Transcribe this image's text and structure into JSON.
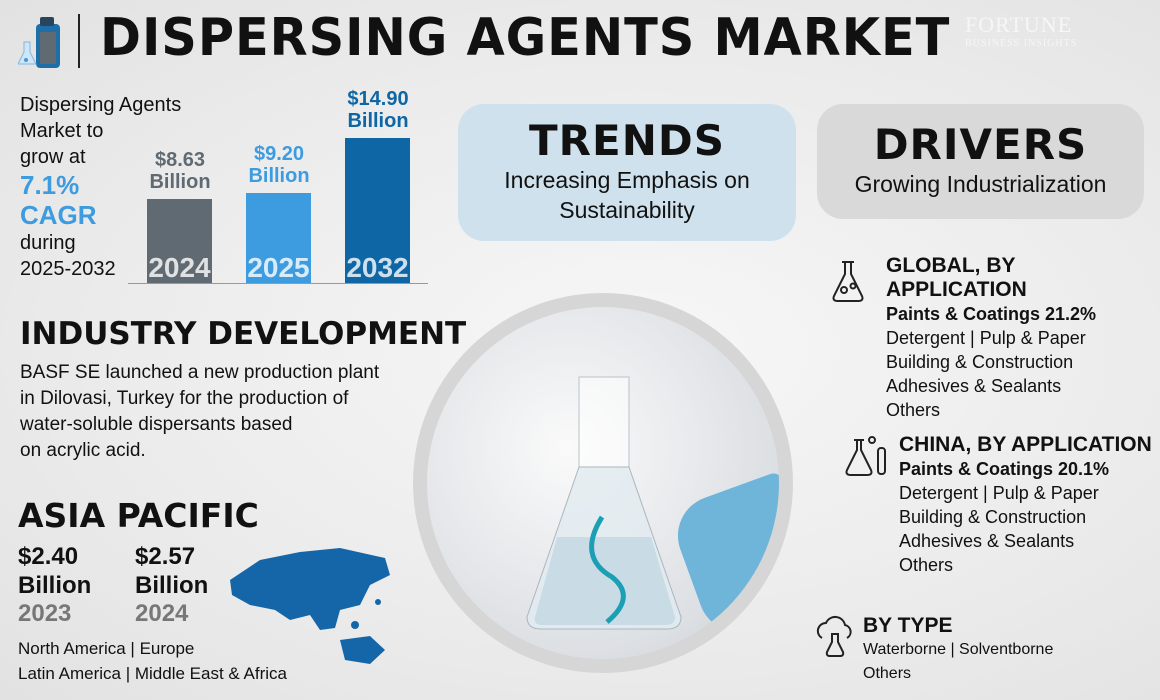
{
  "header": {
    "title": "DISPERSING AGENTS MARKET",
    "logo_brand": "FORTUNE",
    "logo_sub": "BUSINESS INSIGHTS"
  },
  "intro": {
    "line1": "Dispersing Agents",
    "line2": "Market to",
    "line3": "grow at",
    "cagr_value": "7.1%",
    "cagr_label": "CAGR",
    "line4": "during",
    "period": "2025-2032"
  },
  "colors": {
    "accent": "#3d9be0",
    "bar_2024": "#5f6a72",
    "bar_2025": "#3d9be0",
    "bar_2032": "#0e66a4",
    "trends_bg": "#cfe1ec",
    "drivers_bg": "#d9d9d9"
  },
  "chart_data": {
    "type": "bar",
    "categories": [
      "2024",
      "2025",
      "2032"
    ],
    "values": [
      8.63,
      9.2,
      14.9
    ],
    "data_labels": [
      [
        "$8.63",
        "Billion"
      ],
      [
        "$9.20",
        "Billion"
      ],
      [
        "$14.90",
        "Billion"
      ]
    ],
    "unit": "USD Billion",
    "grid": false
  },
  "trends": {
    "title": "TRENDS",
    "text_line1": "Increasing Emphasis on",
    "text_line2": "Sustainability"
  },
  "drivers": {
    "title": "DRIVERS",
    "text": "Growing Industrialization"
  },
  "industry": {
    "title": "INDUSTRY DEVELOPMENT",
    "lines": [
      "BASF SE launched a new production plant",
      "in Dilovasi, Turkey for the production of",
      "water-soluble dispersants based",
      "on acrylic acid."
    ]
  },
  "asia": {
    "title": "ASIA PACIFIC",
    "v1": "$2.40",
    "u1": "Billion",
    "y1": "2023",
    "v2": "$2.57",
    "u2": "Billion",
    "y2": "2024",
    "regions_line1": "North America  |  Europe",
    "regions_line2": "Latin America  |  Middle East & Africa"
  },
  "global": {
    "title": "GLOBAL, BY APPLICATION",
    "highlight": "Paints & Coatings 21.2%",
    "items": [
      "Detergent  |  Pulp & Paper",
      "Building & Construction",
      "Adhesives & Sealants",
      "Others"
    ]
  },
  "china": {
    "title": "CHINA, BY APPLICATION",
    "highlight": "Paints & Coatings 20.1%",
    "items": [
      "Detergent  |  Pulp & Paper",
      "Building & Construction",
      "Adhesives & Sealants",
      "Others"
    ]
  },
  "bytype": {
    "title": "BY TYPE",
    "items": [
      "Waterborne  |  Solventborne",
      "Others"
    ]
  }
}
